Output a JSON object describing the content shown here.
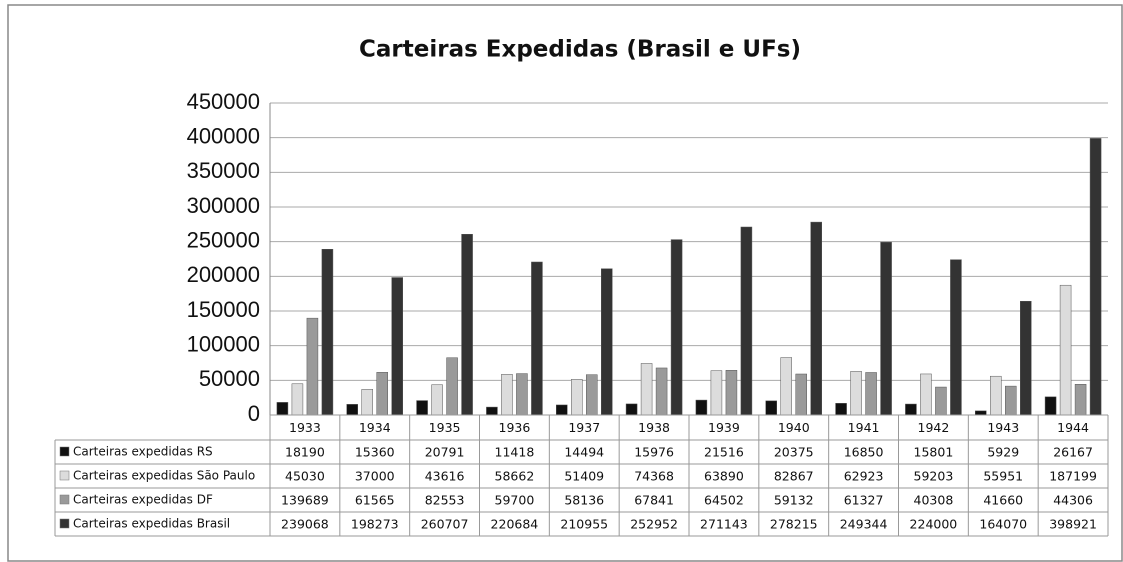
{
  "chart_data": {
    "type": "bar",
    "title": "Carteiras Expedidas (Brasil e UFs)",
    "categories": [
      "1933",
      "1934",
      "1935",
      "1936",
      "1937",
      "1938",
      "1939",
      "1940",
      "1941",
      "1942",
      "1943",
      "1944"
    ],
    "series": [
      {
        "name": "Carteiras expedidas RS",
        "color": "#111111",
        "values": [
          18190,
          15360,
          20791,
          11418,
          14494,
          15976,
          21516,
          20375,
          16850,
          15801,
          5929,
          26167
        ]
      },
      {
        "name": "Carteiras expedidas São Paulo",
        "color": "#dcdcdc",
        "values": [
          45030,
          37000,
          43616,
          58662,
          51409,
          74368,
          63890,
          82867,
          62923,
          59203,
          55951,
          187199
        ]
      },
      {
        "name": "Carteiras expedidas DF",
        "color": "#9a9a9a",
        "values": [
          139689,
          61565,
          82553,
          59700,
          58136,
          67841,
          64502,
          59132,
          61327,
          40308,
          41660,
          44306
        ]
      },
      {
        "name": "Carteiras expedidas Brasil",
        "color": "#333333",
        "values": [
          239068,
          198273,
          260707,
          220684,
          210955,
          252952,
          271143,
          278215,
          249344,
          224000,
          164070,
          398921
        ]
      }
    ],
    "ylim": [
      0,
      450000
    ],
    "yticks": [
      0,
      50000,
      100000,
      150000,
      200000,
      250000,
      300000,
      350000,
      400000,
      450000
    ],
    "grid": true
  }
}
